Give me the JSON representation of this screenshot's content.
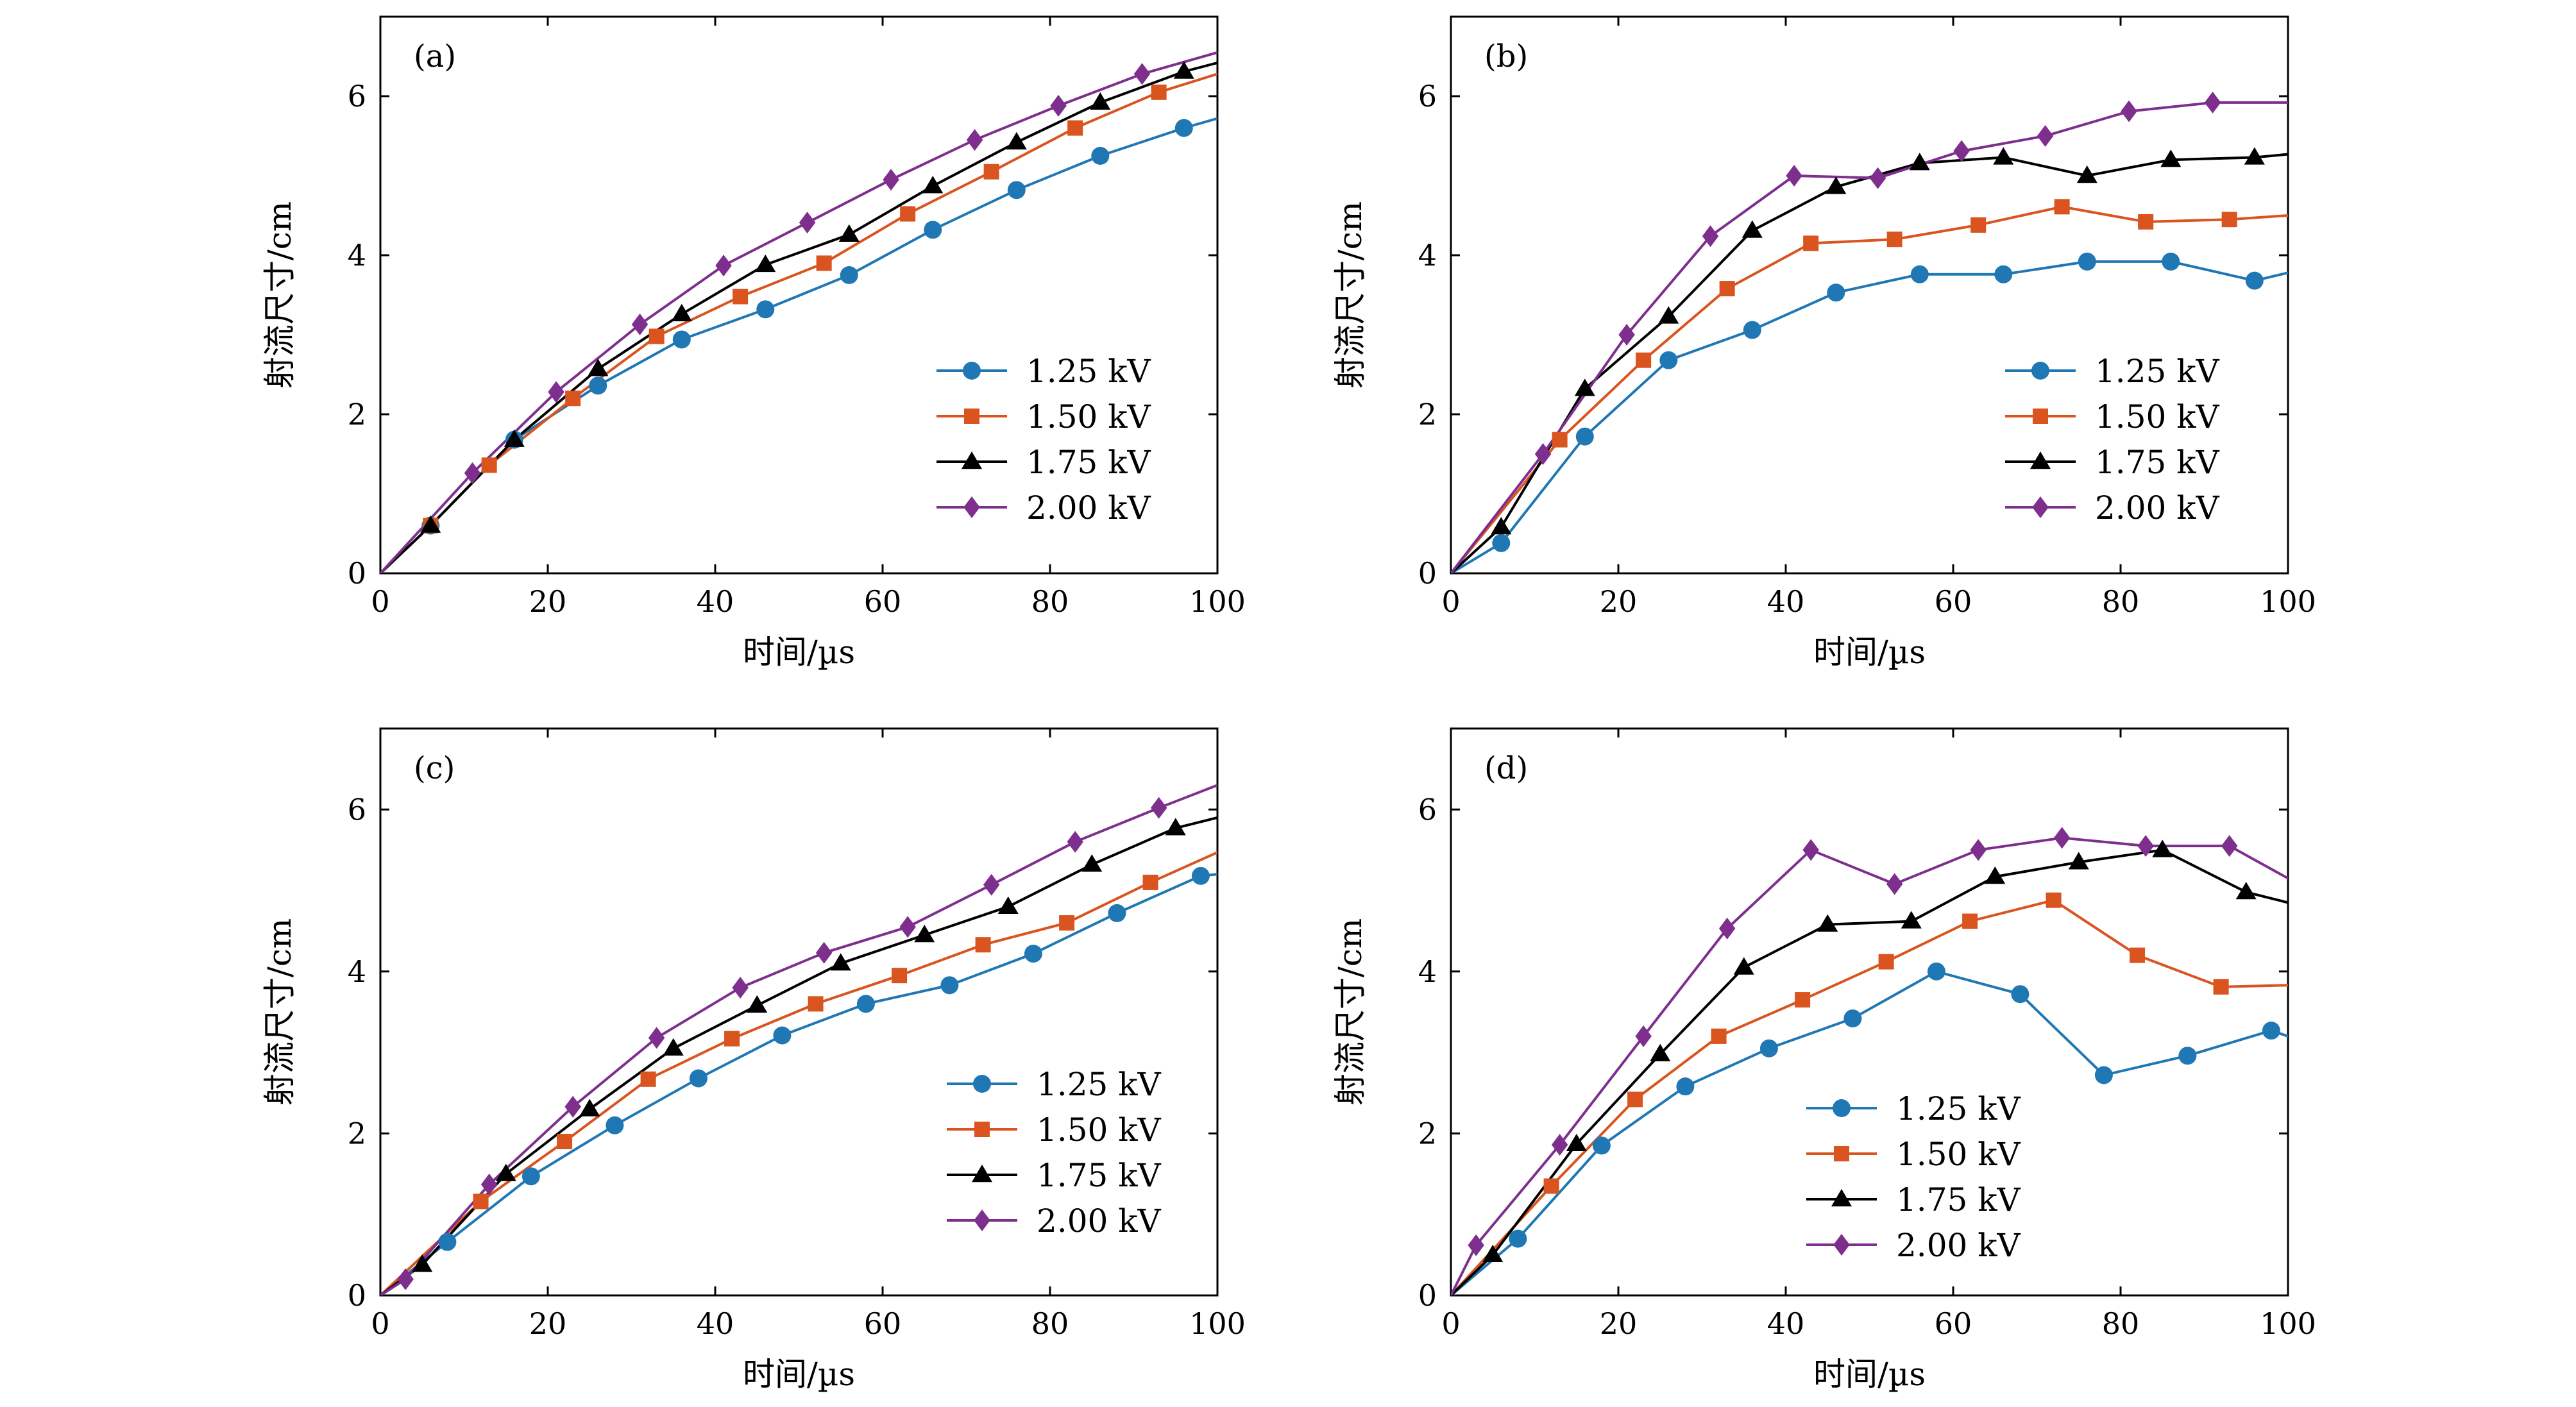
{
  "colors": {
    "1.25 kV": "#1f77b4",
    "1.50 kV": "#d9541e",
    "1.75 kV": "#000000",
    "2.00 kV": "#7e2f8e"
  },
  "markers": {
    "1.25 kV": "circle",
    "1.50 kV": "square",
    "1.75 kV": "triangle",
    "2.00 kV": "diamond"
  },
  "chart_data": [
    {
      "panel_tag": "(a)",
      "type": "line",
      "xlabel": "时间/µs",
      "ylabel": "射流尺寸/cm",
      "xlim": [
        0,
        100
      ],
      "ylim": [
        0,
        7
      ],
      "xticks": [
        0,
        20,
        40,
        60,
        80,
        100
      ],
      "yticks": [
        0,
        2,
        4,
        6
      ],
      "legend_position": "lower-right",
      "series": [
        {
          "name": "1.25 kV",
          "x": [
            0,
            6,
            16,
            26,
            36,
            46,
            56,
            66,
            76,
            86,
            96,
            100
          ],
          "y": [
            0,
            0.6,
            1.68,
            2.36,
            2.94,
            3.32,
            3.75,
            4.32,
            4.82,
            5.25,
            5.6,
            5.72
          ]
        },
        {
          "name": "1.50 kV",
          "x": [
            0,
            6,
            13,
            23,
            33,
            43,
            53,
            63,
            73,
            83,
            93,
            100
          ],
          "y": [
            0,
            0.6,
            1.36,
            2.2,
            2.98,
            3.48,
            3.9,
            4.52,
            5.05,
            5.6,
            6.05,
            6.28
          ]
        },
        {
          "name": "1.75 kV",
          "x": [
            0,
            6,
            16,
            26,
            36,
            46,
            56,
            66,
            76,
            86,
            96,
            100
          ],
          "y": [
            0,
            0.6,
            1.68,
            2.57,
            3.26,
            3.88,
            4.26,
            4.87,
            5.42,
            5.92,
            6.31,
            6.42
          ]
        },
        {
          "name": "2.00 kV",
          "x": [
            0,
            11,
            21,
            31,
            41,
            51,
            61,
            71,
            81,
            91,
            100
          ],
          "y": [
            0,
            1.26,
            2.28,
            3.13,
            3.87,
            4.41,
            4.95,
            5.45,
            5.88,
            6.28,
            6.55
          ]
        }
      ]
    },
    {
      "panel_tag": "(b)",
      "type": "line",
      "xlabel": "时间/µs",
      "ylabel": "射流尺寸/cm",
      "xlim": [
        0,
        100
      ],
      "ylim": [
        0,
        7
      ],
      "xticks": [
        0,
        20,
        40,
        60,
        80,
        100
      ],
      "yticks": [
        0,
        2,
        4,
        6
      ],
      "legend_position": "lower-right",
      "series": [
        {
          "name": "1.25 kV",
          "x": [
            0,
            6,
            16,
            26,
            36,
            46,
            56,
            66,
            76,
            86,
            96,
            100
          ],
          "y": [
            0,
            0.38,
            1.72,
            2.68,
            3.06,
            3.53,
            3.76,
            3.76,
            3.92,
            3.92,
            3.68,
            3.78
          ]
        },
        {
          "name": "1.50 kV",
          "x": [
            0,
            13,
            23,
            33,
            43,
            53,
            63,
            73,
            83,
            93,
            100
          ],
          "y": [
            0,
            1.68,
            2.68,
            3.58,
            4.15,
            4.2,
            4.38,
            4.61,
            4.42,
            4.45,
            4.5
          ]
        },
        {
          "name": "1.75 kV",
          "x": [
            0,
            6,
            16,
            26,
            36,
            46,
            56,
            66,
            76,
            86,
            96,
            100
          ],
          "y": [
            0,
            0.58,
            2.32,
            3.23,
            4.31,
            4.86,
            5.16,
            5.23,
            5.0,
            5.2,
            5.23,
            5.27
          ]
        },
        {
          "name": "2.00 kV",
          "x": [
            0,
            11,
            21,
            31,
            41,
            51,
            61,
            71,
            81,
            91,
            100
          ],
          "y": [
            0,
            1.5,
            3.0,
            4.24,
            5.0,
            4.97,
            5.31,
            5.5,
            5.81,
            5.92,
            5.92
          ]
        }
      ]
    },
    {
      "panel_tag": "(c)",
      "type": "line",
      "xlabel": "时间/µs",
      "ylabel": "射流尺寸/cm",
      "xlim": [
        0,
        100
      ],
      "ylim": [
        0,
        7
      ],
      "xticks": [
        0,
        20,
        40,
        60,
        80,
        100
      ],
      "yticks": [
        0,
        2,
        4,
        6
      ],
      "legend_position": "lower-right",
      "series": [
        {
          "name": "1.25 kV",
          "x": [
            0,
            8,
            18,
            28,
            38,
            48,
            58,
            68,
            78,
            88,
            98,
            100
          ],
          "y": [
            0,
            0.66,
            1.47,
            2.1,
            2.68,
            3.21,
            3.6,
            3.83,
            4.22,
            4.72,
            5.18,
            5.2
          ]
        },
        {
          "name": "1.50 kV",
          "x": [
            0,
            12,
            22,
            32,
            42,
            52,
            62,
            72,
            82,
            92,
            100
          ],
          "y": [
            0,
            1.16,
            1.9,
            2.67,
            3.17,
            3.6,
            3.95,
            4.33,
            4.6,
            5.1,
            5.47
          ]
        },
        {
          "name": "1.75 kV",
          "x": [
            0,
            5,
            15,
            25,
            35,
            45,
            55,
            65,
            75,
            85,
            95,
            100
          ],
          "y": [
            0,
            0.38,
            1.5,
            2.3,
            3.05,
            3.58,
            4.1,
            4.45,
            4.8,
            5.32,
            5.77,
            5.9
          ]
        },
        {
          "name": "2.00 kV",
          "x": [
            0,
            3,
            13,
            23,
            33,
            43,
            53,
            63,
            73,
            83,
            93,
            100
          ],
          "y": [
            0,
            0.2,
            1.37,
            2.33,
            3.18,
            3.8,
            4.23,
            4.55,
            5.07,
            5.6,
            6.02,
            6.3
          ]
        }
      ]
    },
    {
      "panel_tag": "(d)",
      "type": "line",
      "xlabel": "时间/µs",
      "ylabel": "射流尺寸/cm",
      "xlim": [
        0,
        100
      ],
      "ylim": [
        0,
        7
      ],
      "xticks": [
        0,
        20,
        40,
        60,
        80,
        100
      ],
      "yticks": [
        0,
        2,
        4,
        6
      ],
      "legend_position": "lower-center",
      "series": [
        {
          "name": "1.25 kV",
          "x": [
            0,
            8,
            18,
            28,
            38,
            48,
            58,
            68,
            78,
            88,
            98,
            100
          ],
          "y": [
            0,
            0.7,
            1.85,
            2.58,
            3.05,
            3.42,
            4.0,
            3.72,
            2.72,
            2.96,
            3.27,
            3.2
          ]
        },
        {
          "name": "1.50 kV",
          "x": [
            0,
            12,
            22,
            32,
            42,
            52,
            62,
            72,
            82,
            92,
            100
          ],
          "y": [
            0,
            1.35,
            2.42,
            3.2,
            3.65,
            4.12,
            4.62,
            4.88,
            4.2,
            3.81,
            3.83
          ]
        },
        {
          "name": "1.75 kV",
          "x": [
            0,
            5,
            15,
            25,
            35,
            45,
            55,
            65,
            75,
            85,
            95,
            100
          ],
          "y": [
            0,
            0.5,
            1.87,
            2.98,
            4.05,
            4.58,
            4.62,
            5.17,
            5.35,
            5.5,
            4.98,
            4.85
          ]
        },
        {
          "name": "2.00 kV",
          "x": [
            0,
            3,
            13,
            23,
            33,
            43,
            53,
            63,
            73,
            83,
            93,
            100
          ],
          "y": [
            0,
            0.62,
            1.86,
            3.2,
            4.53,
            5.5,
            5.08,
            5.5,
            5.65,
            5.55,
            5.55,
            5.15
          ]
        }
      ]
    }
  ]
}
